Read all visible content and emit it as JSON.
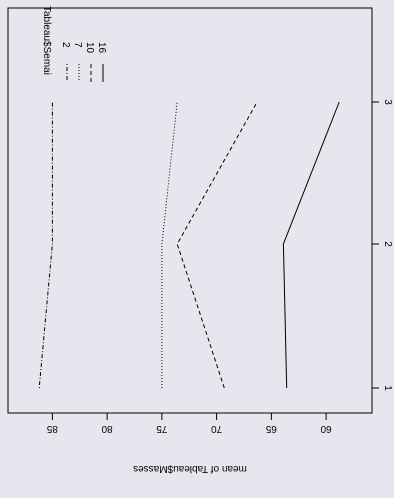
{
  "chart_data": {
    "type": "line",
    "orientation": "rotated-90",
    "xlabel": "",
    "ylabel": "mean of Tableau$Masses",
    "x": [
      1,
      2,
      3
    ],
    "x_tick_labels": [
      "1",
      "2",
      "3"
    ],
    "y_ticks": [
      60,
      65,
      70,
      75,
      80,
      85
    ],
    "y_tick_labels": [
      "60",
      "65",
      "70",
      "75",
      "80",
      "85"
    ],
    "ylim": [
      58,
      87.5
    ],
    "legend": {
      "title": "Tableau$Semai",
      "placement": "top-left",
      "entries": [
        "2",
        "7",
        "10",
        "16"
      ]
    },
    "series": [
      {
        "name": "2",
        "values": [
          86.2,
          85.0,
          85.0
        ],
        "line_style": "dotdash"
      },
      {
        "name": "7",
        "values": [
          75.0,
          75.0,
          73.6
        ],
        "line_style": "dotted"
      },
      {
        "name": "10",
        "values": [
          69.3,
          73.6,
          66.3
        ],
        "line_style": "dashed"
      },
      {
        "name": "16",
        "values": [
          63.6,
          63.9,
          58.8
        ],
        "line_style": "solid"
      }
    ],
    "grid": false
  }
}
